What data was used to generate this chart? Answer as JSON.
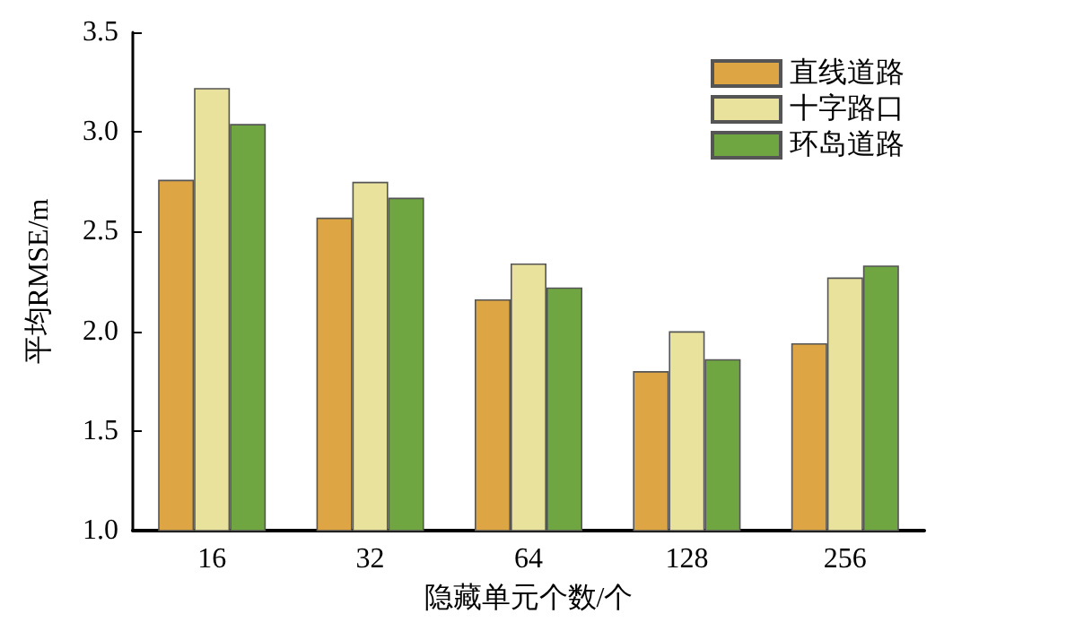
{
  "chart_data": {
    "type": "bar",
    "xlabel": "隐藏单元个数/个",
    "ylabel": "平均RMSE/m",
    "categories": [
      "16",
      "32",
      "64",
      "128",
      "256"
    ],
    "series": [
      {
        "name": "直线道路",
        "color": "#dea544",
        "values": [
          2.76,
          2.57,
          2.16,
          1.8,
          1.94
        ]
      },
      {
        "name": "十字路口",
        "color": "#e8e29c",
        "values": [
          3.22,
          2.75,
          2.34,
          2.0,
          2.27
        ]
      },
      {
        "name": "环岛道路",
        "color": "#6fa642",
        "values": [
          3.04,
          2.67,
          2.22,
          1.86,
          2.33
        ]
      }
    ],
    "ylim": [
      1.0,
      3.5
    ],
    "yticks": [
      {
        "value": 1,
        "label": "1.0"
      },
      1.5,
      {
        "value": 2,
        "label": "2.0"
      },
      2.5,
      {
        "value": 3,
        "label": "3.0"
      },
      3.5
    ],
    "grid": false,
    "legend": "top right"
  }
}
